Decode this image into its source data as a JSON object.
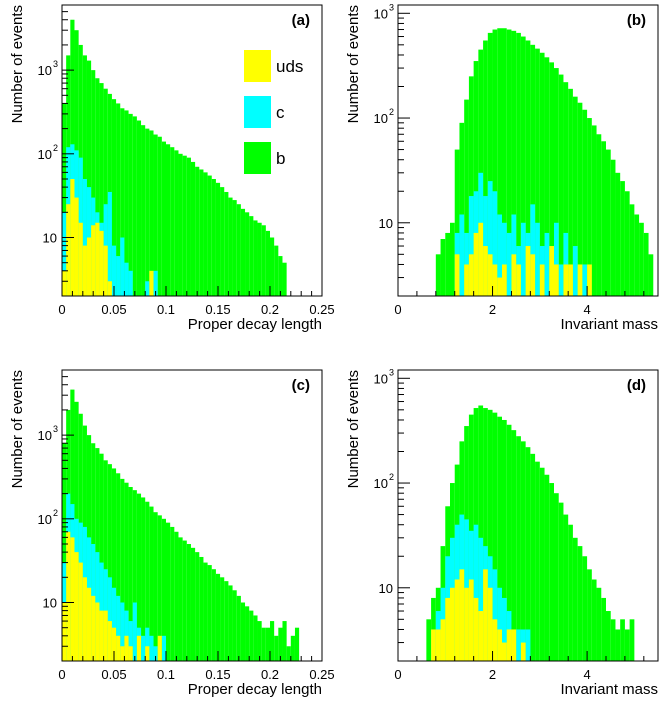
{
  "legend": [
    {
      "label": "uds",
      "color": "#ffff00"
    },
    {
      "label": "c",
      "color": "#00ffff"
    },
    {
      "label": "b",
      "color": "#00ff00"
    }
  ],
  "chart_data": [
    {
      "type": "bar",
      "panel": "(a)",
      "xlabel": "Proper decay length",
      "ylabel": "Number of events",
      "xlim": [
        0,
        0.25
      ],
      "ylim": [
        2,
        6000
      ],
      "log_y": true,
      "xticks": [
        0,
        0.05,
        0.1,
        0.15,
        0.2,
        0.25
      ],
      "xtick_labels": [
        "0",
        "0.05",
        "0.1",
        "0.15",
        "0.2",
        "0.25"
      ],
      "yticks": [
        10,
        100,
        1000
      ],
      "ytick_labels": [
        "10",
        "10^2",
        "10^3"
      ],
      "bin_edges_start": 0,
      "bin_width": 0.004,
      "series": [
        {
          "name": "b",
          "color": "#00ff00",
          "values": [
            400,
            1500,
            4000,
            3000,
            2000,
            1500,
            1300,
            1000,
            800,
            700,
            600,
            520,
            450,
            400,
            350,
            330,
            300,
            280,
            250,
            220,
            200,
            190,
            170,
            160,
            140,
            130,
            120,
            110,
            100,
            95,
            90,
            80,
            70,
            65,
            60,
            55,
            50,
            45,
            40,
            35,
            30,
            28,
            25,
            22,
            20,
            18,
            16,
            15,
            14,
            12,
            10,
            8,
            6,
            5
          ]
        },
        {
          "name": "c",
          "color": "#00ffff",
          "values": [
            20,
            120,
            130,
            110,
            90,
            50,
            40,
            30,
            20,
            15,
            25,
            35,
            8,
            6,
            10,
            5,
            4,
            0,
            0,
            0,
            3,
            0,
            4
          ]
        },
        {
          "name": "uds",
          "color": "#ffff00",
          "values": [
            4,
            25,
            50,
            30,
            15,
            8,
            10,
            14,
            15,
            12,
            8,
            3,
            0,
            0,
            0,
            0,
            0,
            0,
            0,
            0,
            0,
            4
          ]
        }
      ]
    },
    {
      "type": "bar",
      "panel": "(b)",
      "xlabel": "Invariant mass",
      "ylabel": "Number of events",
      "xlim": [
        0,
        5.5
      ],
      "ylim": [
        2,
        1200
      ],
      "log_y": true,
      "xticks": [
        0,
        2,
        4
      ],
      "xtick_labels": [
        "0",
        "2",
        "4"
      ],
      "yticks": [
        10,
        100,
        1000
      ],
      "ytick_labels": [
        "10",
        "10^2",
        "10^3"
      ],
      "bin_edges_start": 0.8,
      "bin_width": 0.1,
      "series": [
        {
          "name": "b",
          "color": "#00ff00",
          "values": [
            5,
            7,
            8,
            10,
            50,
            90,
            150,
            250,
            350,
            450,
            550,
            650,
            700,
            720,
            720,
            700,
            680,
            650,
            600,
            550,
            500,
            460,
            420,
            380,
            340,
            300,
            260,
            220,
            190,
            160,
            140,
            120,
            100,
            85,
            70,
            60,
            50,
            40,
            30,
            25,
            20,
            15,
            12,
            10,
            8,
            5
          ]
        },
        {
          "name": "c",
          "color": "#00ffff",
          "values": [
            0,
            0,
            0,
            0,
            8,
            12,
            8,
            18,
            20,
            30,
            18,
            25,
            20,
            12,
            10,
            8,
            12,
            6,
            10,
            8,
            15,
            10,
            6,
            8,
            4,
            10,
            4,
            8,
            4,
            6,
            4,
            4
          ]
        },
        {
          "name": "uds",
          "color": "#ffff00",
          "values": [
            0,
            0,
            0,
            0,
            5,
            0,
            4,
            5,
            8,
            10,
            6,
            5,
            4,
            3,
            4,
            0,
            5,
            4,
            0,
            6,
            5,
            0,
            4,
            0,
            6,
            4,
            0,
            4,
            4,
            0,
            4,
            0,
            4
          ]
        }
      ]
    },
    {
      "type": "bar",
      "panel": "(c)",
      "xlabel": "Proper decay length",
      "ylabel": "Number of events",
      "xlim": [
        0,
        0.25
      ],
      "ylim": [
        2,
        6000
      ],
      "log_y": true,
      "xticks": [
        0,
        0.05,
        0.1,
        0.15,
        0.2,
        0.25
      ],
      "xtick_labels": [
        "0",
        "0.05",
        "0.1",
        "0.15",
        "0.2",
        "0.25"
      ],
      "yticks": [
        10,
        100,
        1000
      ],
      "ytick_labels": [
        "10",
        "10^2",
        "10^3"
      ],
      "bin_edges_start": 0,
      "bin_width": 0.004,
      "series": [
        {
          "name": "b",
          "color": "#00ff00",
          "values": [
            800,
            2000,
            3500,
            2500,
            1800,
            1300,
            1000,
            800,
            700,
            600,
            500,
            450,
            400,
            350,
            300,
            270,
            240,
            220,
            200,
            180,
            160,
            140,
            120,
            110,
            100,
            90,
            80,
            70,
            60,
            55,
            50,
            45,
            40,
            35,
            30,
            28,
            25,
            22,
            20,
            18,
            16,
            14,
            12,
            10,
            9,
            8,
            7,
            6,
            5,
            5,
            6,
            4,
            5,
            6,
            3,
            4,
            5
          ]
        },
        {
          "name": "c",
          "color": "#00ffff",
          "values": [
            30,
            200,
            150,
            100,
            90,
            80,
            60,
            50,
            40,
            30,
            25,
            20,
            15,
            12,
            10,
            8,
            6,
            10,
            5,
            4,
            5,
            4,
            3,
            0,
            4
          ]
        },
        {
          "name": "uds",
          "color": "#ffff00",
          "values": [
            10,
            70,
            60,
            40,
            30,
            20,
            15,
            12,
            10,
            8,
            8,
            6,
            5,
            4,
            3,
            4,
            3,
            0,
            4,
            0,
            3,
            0,
            0,
            4
          ]
        }
      ]
    },
    {
      "type": "bar",
      "panel": "(d)",
      "xlabel": "Invariant mass",
      "ylabel": "Number of events",
      "xlim": [
        0,
        5.5
      ],
      "ylim": [
        2,
        1200
      ],
      "log_y": true,
      "xticks": [
        0,
        2,
        4
      ],
      "xtick_labels": [
        "0",
        "2",
        "4"
      ],
      "yticks": [
        10,
        100,
        1000
      ],
      "ytick_labels": [
        "10",
        "10^2",
        "10^3"
      ],
      "bin_edges_start": 0.6,
      "bin_width": 0.1,
      "series": [
        {
          "name": "b",
          "color": "#00ff00",
          "values": [
            5,
            8,
            10,
            25,
            60,
            100,
            150,
            250,
            350,
            450,
            520,
            550,
            520,
            500,
            470,
            430,
            400,
            360,
            320,
            280,
            250,
            220,
            190,
            160,
            140,
            120,
            100,
            80,
            65,
            50,
            40,
            30,
            25,
            20,
            15,
            12,
            10,
            8,
            6,
            5,
            4,
            5,
            4,
            5
          ]
        },
        {
          "name": "c",
          "color": "#00ffff",
          "values": [
            0,
            4,
            6,
            10,
            20,
            30,
            40,
            50,
            45,
            35,
            40,
            30,
            25,
            20,
            15,
            10,
            8,
            6,
            4,
            4,
            4,
            4
          ]
        },
        {
          "name": "uds",
          "color": "#ffff00",
          "values": [
            0,
            4,
            4,
            5,
            8,
            10,
            12,
            15,
            10,
            12,
            8,
            6,
            15,
            10,
            5,
            4,
            3,
            4,
            4,
            0,
            3,
            0
          ]
        }
      ]
    }
  ]
}
